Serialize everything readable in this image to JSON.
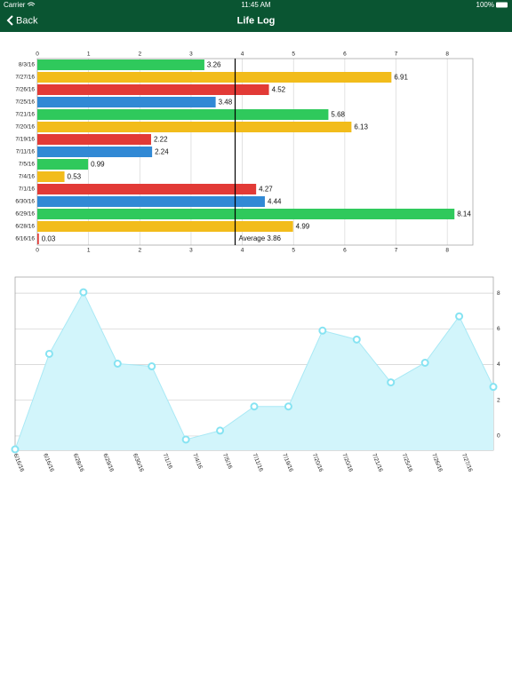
{
  "status_bar": {
    "carrier": "Carrier",
    "time": "11:45 AM",
    "battery": "100%"
  },
  "nav_bar": {
    "back": "Back",
    "title": "Life Log"
  },
  "chart_data": [
    {
      "type": "bar",
      "orientation": "horizontal",
      "categories": [
        "8/3/16",
        "7/27/16",
        "7/26/16",
        "7/25/16",
        "7/21/16",
        "7/20/16",
        "7/19/16",
        "7/11/16",
        "7/5/16",
        "7/4/16",
        "7/1/16",
        "6/30/16",
        "6/29/16",
        "6/28/16",
        "6/16/16"
      ],
      "values": [
        3.26,
        6.91,
        4.52,
        3.48,
        5.68,
        6.13,
        2.22,
        2.24,
        0.99,
        0.53,
        4.27,
        4.44,
        8.14,
        4.99,
        0.03
      ],
      "colors": [
        "#2fc95c",
        "#f2bc1b",
        "#e23a36",
        "#3189d5",
        "#2fc95c",
        "#f2bc1b",
        "#e23a36",
        "#3189d5",
        "#2fc95c",
        "#f2bc1b",
        "#e23a36",
        "#3189d5",
        "#2fc95c",
        "#f2bc1b",
        "#e23a36"
      ],
      "xlim": [
        0,
        8.5
      ],
      "xticks": [
        0,
        1,
        2,
        3,
        4,
        5,
        6,
        7,
        8
      ],
      "average": {
        "value": 3.86,
        "label": "Average 3.86"
      },
      "grid": true
    },
    {
      "type": "area",
      "values": [
        -0.75,
        4.6,
        8.05,
        4.05,
        3.9,
        -0.2,
        0.3,
        1.65,
        1.65,
        5.9,
        5.4,
        3.0,
        4.1,
        6.7,
        2.75
      ],
      "xticks": [
        "6/16/16",
        "6/16/16",
        "6/28/16",
        "6/29/16",
        "6/30/16",
        "7/1/16",
        "7/4/16",
        "7/5/16",
        "7/11/16",
        "7/19/16",
        "7/20/16",
        "7/20/16",
        "7/21/16",
        "7/25/16",
        "7/26/16",
        "7/27/16"
      ],
      "ylim": [
        -0.8,
        8.9
      ],
      "yticks": [
        0,
        2,
        4,
        6,
        8
      ],
      "color": "#d2f5fb",
      "line_color": "#a9e9f5",
      "marker_color": "#86e3f2",
      "grid": true
    }
  ]
}
